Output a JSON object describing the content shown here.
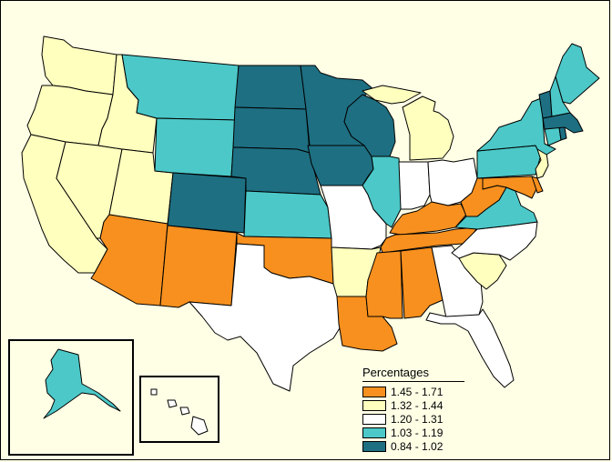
{
  "colors": {
    "background": "#ffffe6",
    "c1": "#f7901e",
    "c2": "#ffffbe",
    "c3": "#ffffff",
    "c4": "#4cc8c8",
    "c5": "#1e6f82"
  },
  "legend": {
    "title": "Percentages",
    "items": [
      {
        "label": "1.45 - 1.71",
        "color_key": "c1"
      },
      {
        "label": "1.32 - 1.44",
        "color_key": "c2"
      },
      {
        "label": "1.20 - 1.31",
        "color_key": "c3"
      },
      {
        "label": "1.03 - 1.19",
        "color_key": "c4"
      },
      {
        "label": "0.84 - 1.02",
        "color_key": "c5"
      }
    ]
  },
  "state_classes": {
    "WA": "c2",
    "OR": "c2",
    "CA": "c2",
    "NV": "c2",
    "ID": "c2",
    "UT": "c2",
    "MT": "c4",
    "WY": "c4",
    "CO": "c5",
    "AZ": "c1",
    "NM": "c1",
    "ND": "c5",
    "SD": "c5",
    "NE": "c5",
    "KS": "c4",
    "OK": "c1",
    "TX": "c3",
    "MN": "c5",
    "IA": "c5",
    "MO": "c3",
    "AR": "c2",
    "LA": "c1",
    "WI": "c5",
    "IL": "c4",
    "MI": "c2",
    "IN": "c3",
    "OH": "c3",
    "KY": "c1",
    "TN": "c1",
    "MS": "c1",
    "AL": "c1",
    "GA": "c3",
    "FL": "c3",
    "SC": "c2",
    "NC": "c3",
    "VA": "c4",
    "WV": "c1",
    "MD": "c1",
    "DE": "c1",
    "PA": "c4",
    "NJ": "c2",
    "NY": "c4",
    "CT": "c4",
    "RI": "c5",
    "MA": "c5",
    "VT": "c5",
    "NH": "c4",
    "ME": "c4",
    "AK": "c4",
    "HI": "c3"
  }
}
